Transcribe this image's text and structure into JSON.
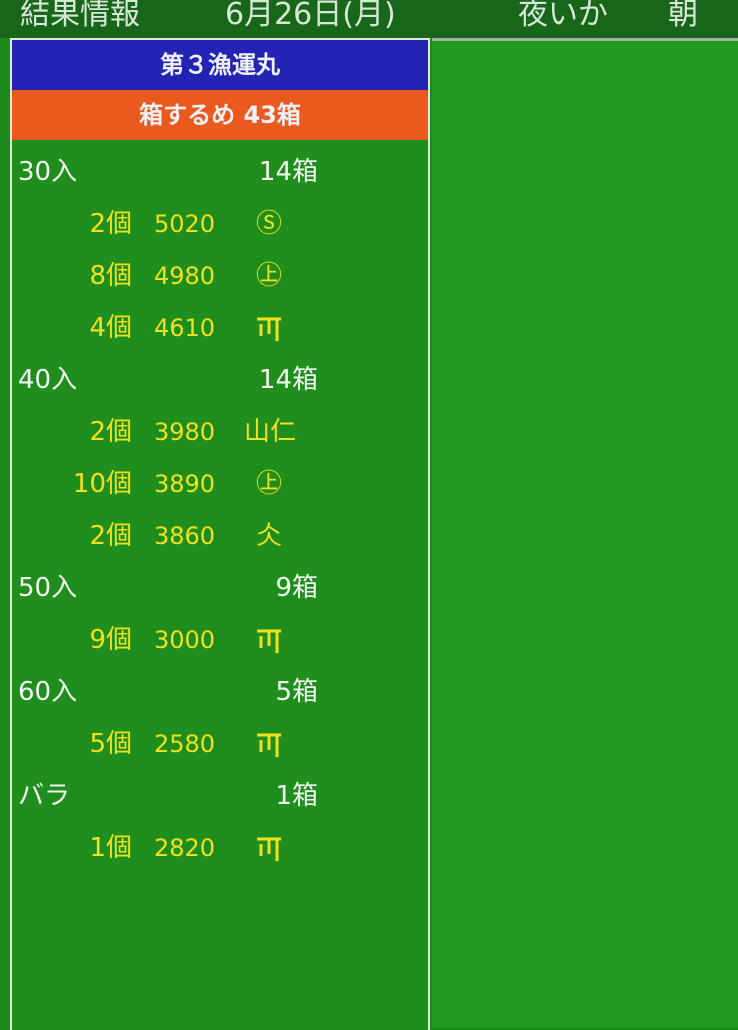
{
  "header": {
    "title": "結果情報",
    "date": "6月26日(月)",
    "session": "夜いか",
    "time": "朝"
  },
  "ship": "第３漁運丸",
  "fish": "箱するめ 43箱",
  "groups": [
    {
      "size": "30入",
      "boxes": "14箱",
      "lots": [
        {
          "qty": "2個",
          "price": "5020",
          "mark": "Ⓢ"
        },
        {
          "qty": "8個",
          "price": "4980",
          "mark": "㊤"
        },
        {
          "qty": "4個",
          "price": "4610",
          "mark": "T-mark"
        }
      ]
    },
    {
      "size": "40入",
      "boxes": "14箱",
      "lots": [
        {
          "qty": "2個",
          "price": "3980",
          "mark": "山仁"
        },
        {
          "qty": "10個",
          "price": "3890",
          "mark": "㊤"
        },
        {
          "qty": "2個",
          "price": "3860",
          "mark": "仌"
        }
      ]
    },
    {
      "size": "50入",
      "boxes": "9箱",
      "lots": [
        {
          "qty": "9個",
          "price": "3000",
          "mark": "T-mark"
        }
      ]
    },
    {
      "size": "60入",
      "boxes": "5箱",
      "lots": [
        {
          "qty": "5個",
          "price": "2580",
          "mark": "T-mark"
        }
      ]
    },
    {
      "size": "バラ",
      "boxes": "1箱",
      "lots": [
        {
          "qty": "1個",
          "price": "2820",
          "mark": "T-mark"
        }
      ]
    }
  ]
}
